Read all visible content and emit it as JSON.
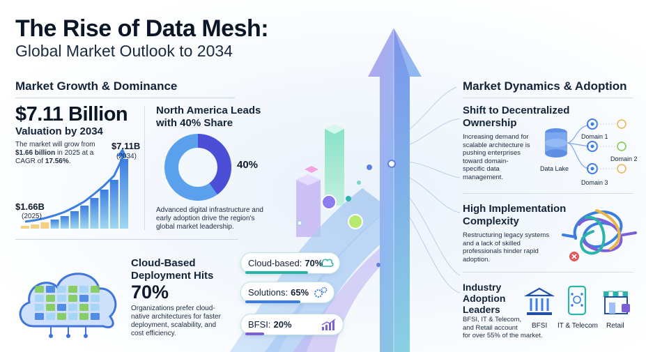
{
  "header": {
    "title": "The Rise of Data Mesh:",
    "subtitle": "Global Market Outlook to 2034"
  },
  "growth": {
    "heading": "Market Growth & Dominance",
    "value": "$7.11 Billion",
    "value_sub": "Valuation by 2034",
    "desc_1": "The market will grow from",
    "desc_2a": "$1.66 billion",
    "desc_2b": " in 2025 at a",
    "desc_3a": "CAGR of ",
    "desc_3b": "17.56%",
    "desc_3c": ".",
    "end_label": "$7.11B",
    "end_year": "(2034)",
    "start_label": "$1.66B",
    "start_year": "(2025)",
    "bar_levels": [
      0.04,
      0.06,
      0.09,
      0.13,
      0.18,
      0.25,
      0.33,
      0.44,
      0.56,
      0.7,
      1.0
    ]
  },
  "north_america": {
    "heading_1": "North America Leads",
    "heading_2": "with 40% Share",
    "share_label": "40%",
    "share": 0.4,
    "desc_1": "Advanced digital infrastructure and",
    "desc_2": "early adoption drive the region's",
    "desc_3": "global market leadership."
  },
  "cloud": {
    "heading_1": "Cloud-Based",
    "heading_2": "Deployment Hits",
    "value": "70%",
    "desc_1": "Organizations prefer cloud-",
    "desc_2": "native architectures for faster",
    "desc_3": "deployment, scalability, and",
    "desc_4": "cost efficiency."
  },
  "pills": [
    {
      "label": "Cloud-based:",
      "value": "70%",
      "icon": "cloud-icon",
      "level": 0.7,
      "color": "#2bb5a8"
    },
    {
      "label": "Solutions:",
      "value": "65%",
      "icon": "gears-icon",
      "level": 0.65,
      "color": "#3b7de0"
    },
    {
      "label": "BFSI:",
      "value": "20%",
      "icon": "chart-up-icon",
      "level": 0.2,
      "color": "#7b5fd6"
    }
  ],
  "dynamics": {
    "heading": "Market Dynamics & Adoption",
    "decentral_1": "Shift to Decentralized",
    "decentral_2": "Ownership",
    "decentral_desc_1": "Increasing demand for",
    "decentral_desc_2": "scalable architecture is",
    "decentral_desc_3": "pushing enterprises",
    "decentral_desc_4": "toward domain-",
    "decentral_desc_5": "specific data",
    "decentral_desc_6": "management.",
    "data_lake": "Data Lake",
    "domain_1": "Domain 1",
    "domain_2": "Domain 2",
    "domain_3": "Domain 3",
    "complexity_1": "High Implementation",
    "complexity_2": "Complexity",
    "complexity_desc_1": "Restructuring legacy systems",
    "complexity_desc_2": "and a lack of skilled",
    "complexity_desc_3": "professionals hinder rapid",
    "complexity_desc_4": "adoption.",
    "industry_1": "Industry",
    "industry_2": "Adoption",
    "industry_3": "Leaders",
    "industry_desc_1": "BFSI, IT & Telecom,",
    "industry_desc_2": "and Retail account",
    "industry_desc_3": "for over 55% of the market.",
    "bfsi": "BFSI",
    "it_telecom": "IT & Telecom",
    "retail": "Retail"
  },
  "colors": {
    "teal": "#2bb5a8",
    "blue": "#3b7de0",
    "purple": "#7b5fd6",
    "navy": "#0b1626"
  }
}
